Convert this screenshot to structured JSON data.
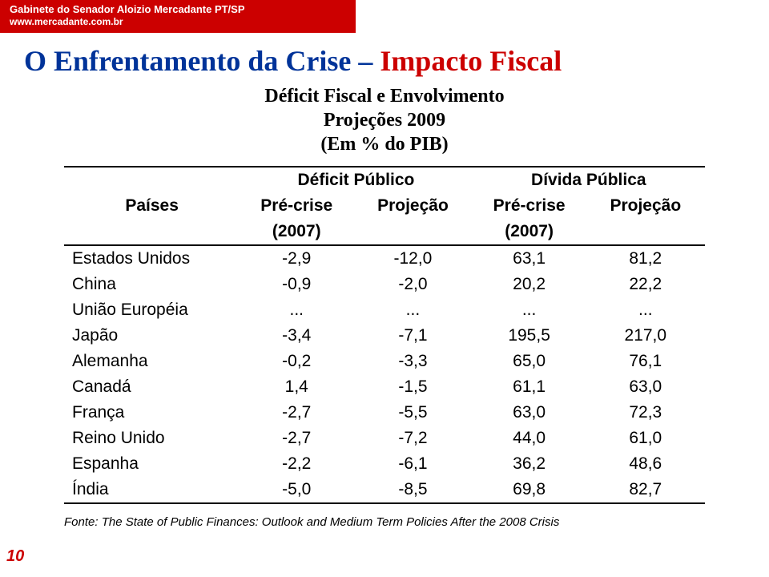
{
  "header": {
    "line1": "Gabinete do Senador Aloizio Mercadante PT/SP",
    "line2": "www.mercadante.com.br"
  },
  "title": {
    "prefix": "O Enfrentamento da Crise",
    "dash": " – ",
    "suffix": "Impacto Fiscal"
  },
  "subtitle": {
    "l1": "Déficit Fiscal e Envolvimento",
    "l2": "Projeções 2009",
    "l3": "(Em % do PIB)"
  },
  "table": {
    "corner": "Países",
    "group1": "Déficit Público",
    "group2": "Dívida Pública",
    "sub_pre": "Pré-crise",
    "sub_pre_year": "(2007)",
    "sub_proj": "Projeção",
    "rows": [
      {
        "label": "Estados Unidos",
        "c1": "-2,9",
        "c2": "-12,0",
        "c3": "63,1",
        "c4": "81,2"
      },
      {
        "label": "China",
        "c1": "-0,9",
        "c2": "-2,0",
        "c3": "20,2",
        "c4": "22,2"
      },
      {
        "label": "União Européia",
        "c1": "...",
        "c2": "...",
        "c3": "...",
        "c4": "..."
      },
      {
        "label": "Japão",
        "c1": "-3,4",
        "c2": "-7,1",
        "c3": "195,5",
        "c4": "217,0"
      },
      {
        "label": "Alemanha",
        "c1": "-0,2",
        "c2": "-3,3",
        "c3": "65,0",
        "c4": "76,1"
      },
      {
        "label": "Canadá",
        "c1": "1,4",
        "c2": "-1,5",
        "c3": "61,1",
        "c4": "63,0"
      },
      {
        "label": "França",
        "c1": "-2,7",
        "c2": "-5,5",
        "c3": "63,0",
        "c4": "72,3"
      },
      {
        "label": "Reino Unido",
        "c1": "-2,7",
        "c2": "-7,2",
        "c3": "44,0",
        "c4": "61,0"
      },
      {
        "label": "Espanha",
        "c1": "-2,2",
        "c2": "-6,1",
        "c3": "36,2",
        "c4": "48,6"
      },
      {
        "label": "Índia",
        "c1": "-5,0",
        "c2": "-8,5",
        "c3": "69,8",
        "c4": "82,7"
      }
    ]
  },
  "footnote": "Fonte: The State of Public Finances: Outlook and Medium Term Policies After the 2008 Crisis",
  "pagenum": "10",
  "colors": {
    "red": "#cc0000",
    "blue": "#003399",
    "black": "#000000",
    "white": "#ffffff"
  }
}
